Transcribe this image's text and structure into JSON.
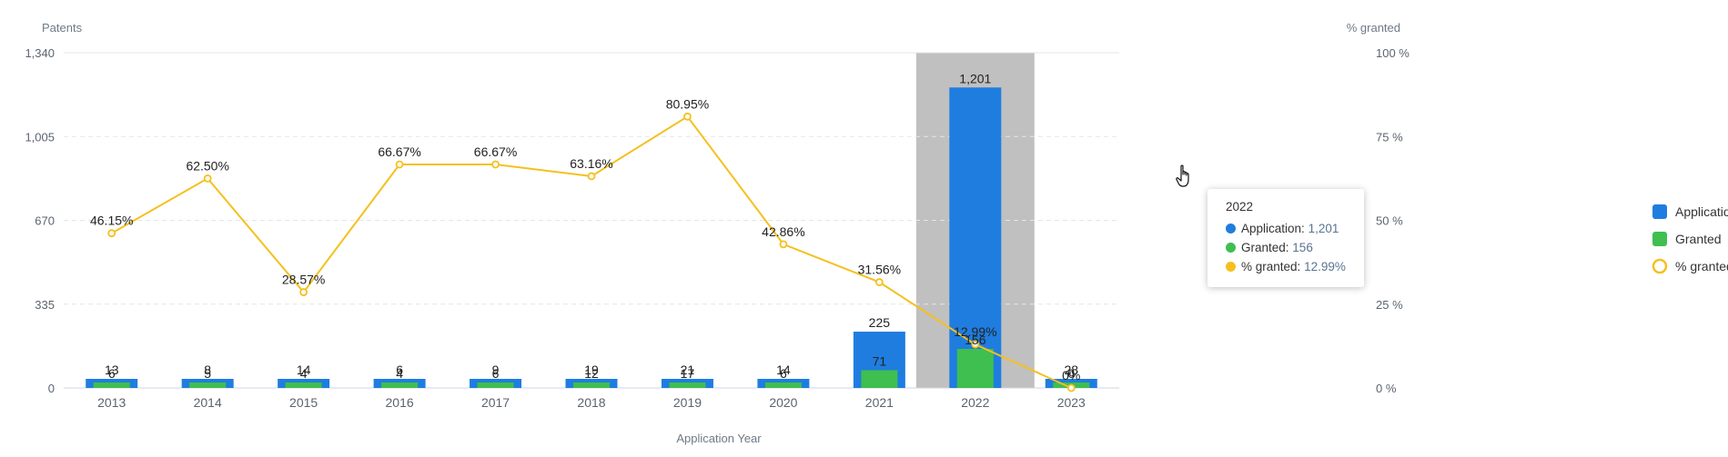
{
  "chart_data": {
    "type": "bar+line",
    "categories": [
      "2013",
      "2014",
      "2015",
      "2016",
      "2017",
      "2018",
      "2019",
      "2020",
      "2021",
      "2022",
      "2023"
    ],
    "series": [
      {
        "name": "Application",
        "type": "bar",
        "color": "#1f7de0",
        "values": [
          13,
          8,
          14,
          6,
          9,
          19,
          21,
          14,
          225,
          1201,
          28
        ]
      },
      {
        "name": "Granted",
        "type": "bar",
        "color": "#3fbf4f",
        "values": [
          6,
          5,
          4,
          4,
          6,
          12,
          17,
          6,
          71,
          156,
          0
        ]
      },
      {
        "name": "% granted",
        "type": "line",
        "color": "#f5c01e",
        "values": [
          46.15,
          62.5,
          28.57,
          66.67,
          66.67,
          63.16,
          80.95,
          42.86,
          31.56,
          12.99,
          0
        ],
        "labels": [
          "46.15%",
          "62.50%",
          "28.57%",
          "66.67%",
          "66.67%",
          "63.16%",
          "80.95%",
          "42.86%",
          "31.56%",
          "12.99%",
          "0%"
        ]
      }
    ],
    "y_left": {
      "title": "Patents",
      "ticks": [
        "0",
        "335",
        "670",
        "1,005",
        "1,340"
      ],
      "range": [
        0,
        1340
      ]
    },
    "y_right": {
      "title": "% granted",
      "ticks": [
        "0 %",
        "25 %",
        "50 %",
        "75 %",
        "100 %"
      ],
      "range": [
        0,
        100
      ]
    },
    "xlabel": "Application Year",
    "grid": true,
    "legend_position": "right",
    "highlighted_category": "2022"
  },
  "tooltip": {
    "title": "2022",
    "rows": [
      {
        "label": "Application:",
        "value": "1,201",
        "color": "#1f7de0"
      },
      {
        "label": "Granted:",
        "value": "156",
        "color": "#3fbf4f"
      },
      {
        "label": "% granted:",
        "value": "12.99%",
        "color": "#f5c01e"
      }
    ]
  },
  "legend": [
    {
      "label": "Application",
      "color": "#1f7de0",
      "shape": "square"
    },
    {
      "label": "Granted",
      "color": "#3fbf4f",
      "shape": "square"
    },
    {
      "label": "% granted",
      "color": "#f5c01e",
      "shape": "ring"
    }
  ],
  "icons": {
    "cursor": "hand-pointer-icon"
  }
}
